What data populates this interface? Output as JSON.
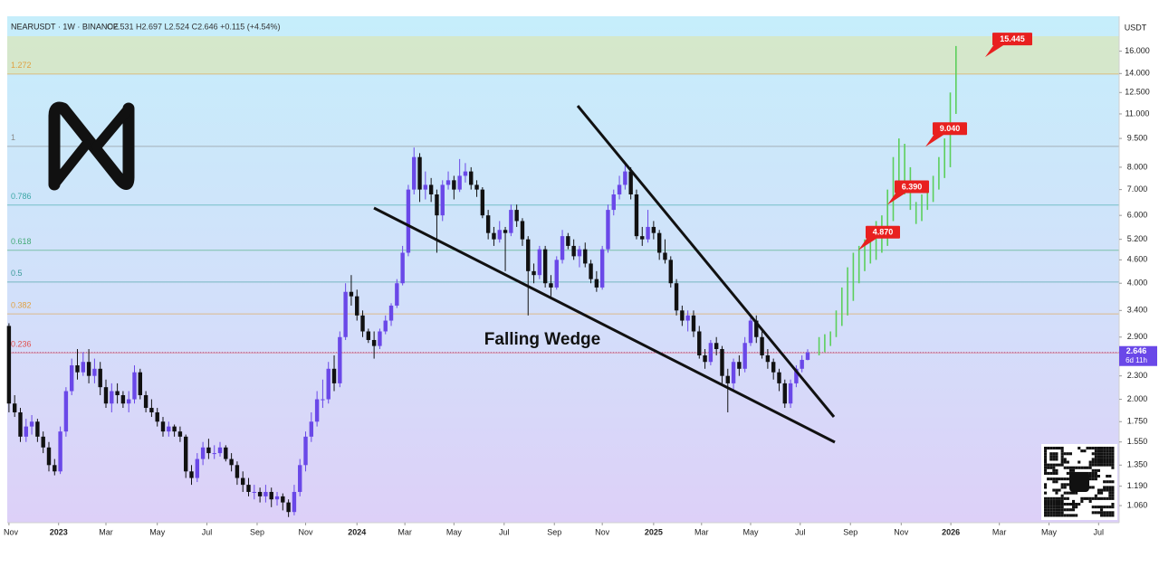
{
  "chart_data": {
    "type": "candlestick",
    "symbol": "NEARUSDT · 1W · BINANCE",
    "ohlc_text": "O2.531 H2.697 L2.524 C2.646 +0.115 (+4.54%)",
    "currency": "USDT",
    "annotation": "Falling Wedge",
    "log_scale": true,
    "up_color": "#6a48e8",
    "down_color": "#111111",
    "projection_color": "#5ccf5c",
    "target_color": "#e8201f",
    "ylim": [
      0.957,
      17.5
    ],
    "xlim": [
      -0.3,
      194.6
    ],
    "yticks": [
      {
        "value": 16,
        "label": "16.000"
      },
      {
        "value": 14,
        "label": "14.000"
      },
      {
        "value": 12.5,
        "label": "12.500"
      },
      {
        "value": 11,
        "label": "11.000"
      },
      {
        "value": 9.5,
        "label": "9.500"
      },
      {
        "value": 8,
        "label": "8.000"
      },
      {
        "value": 7,
        "label": "7.000"
      },
      {
        "value": 6,
        "label": "6.000"
      },
      {
        "value": 5.2,
        "label": "5.200"
      },
      {
        "value": 4.6,
        "label": "4.600"
      },
      {
        "value": 4,
        "label": "4.000"
      },
      {
        "value": 3.4,
        "label": "3.400"
      },
      {
        "value": 2.9,
        "label": "2.900"
      },
      {
        "value": 2.3,
        "label": "2.300"
      },
      {
        "value": 2,
        "label": "2.000"
      },
      {
        "value": 1.75,
        "label": "1.750"
      },
      {
        "value": 1.55,
        "label": "1.550"
      },
      {
        "value": 1.35,
        "label": "1.350"
      },
      {
        "value": 1.19,
        "label": "1.190"
      },
      {
        "value": 1.06,
        "label": "1.060"
      }
    ],
    "xticks": [
      {
        "value": 0,
        "label": "Nov"
      },
      {
        "value": 8.7,
        "label": "2023"
      },
      {
        "value": 17,
        "label": "Mar"
      },
      {
        "value": 26,
        "label": "May"
      },
      {
        "value": 34.7,
        "label": "Jul"
      },
      {
        "value": 43.5,
        "label": "Sep"
      },
      {
        "value": 52,
        "label": "Nov"
      },
      {
        "value": 61,
        "label": "2024"
      },
      {
        "value": 69.4,
        "label": "Mar"
      },
      {
        "value": 78,
        "label": "May"
      },
      {
        "value": 86.8,
        "label": "Jul"
      },
      {
        "value": 95.6,
        "label": "Sep"
      },
      {
        "value": 104,
        "label": "Nov"
      },
      {
        "value": 113,
        "label": "2025"
      },
      {
        "value": 121.4,
        "label": "Mar"
      },
      {
        "value": 130,
        "label": "May"
      },
      {
        "value": 138.7,
        "label": "Jul"
      },
      {
        "value": 147.5,
        "label": "Sep"
      },
      {
        "value": 156.4,
        "label": "Nov"
      },
      {
        "value": 165.1,
        "label": "2026"
      },
      {
        "value": 173.6,
        "label": "Mar"
      },
      {
        "value": 182.3,
        "label": "May"
      },
      {
        "value": 191,
        "label": "Jul"
      }
    ],
    "fib_levels": [
      {
        "label": "1.272",
        "value": 13.96,
        "color": "#e0a040"
      },
      {
        "label": "1",
        "value": 9.06,
        "color": "#8a8a8a"
      },
      {
        "label": "0.786",
        "value": 6.38,
        "color": "#3aa6a6"
      },
      {
        "label": "0.618",
        "value": 4.87,
        "color": "#44aa77"
      },
      {
        "label": "0.5",
        "value": 4.03,
        "color": "#3a9a9a"
      },
      {
        "label": "0.382",
        "value": 3.33,
        "color": "#e0a040"
      },
      {
        "label": "0.236",
        "value": 2.64,
        "color": "#e05050"
      }
    ],
    "last_price": {
      "value": 2.646,
      "label": "2.646"
    },
    "countdown": "6d 11h",
    "targets": [
      {
        "value": 4.87,
        "label": "4.870"
      },
      {
        "value": 6.39,
        "label": "6.390"
      },
      {
        "value": 9.04,
        "label": "9.040"
      },
      {
        "value": 15.445,
        "label": "15.445"
      }
    ],
    "ohlc": [
      [
        3.1,
        3.15,
        1.85,
        1.95
      ],
      [
        1.95,
        2.05,
        1.8,
        1.85
      ],
      [
        1.85,
        1.9,
        1.55,
        1.6
      ],
      [
        1.6,
        1.78,
        1.55,
        1.7
      ],
      [
        1.7,
        1.82,
        1.62,
        1.75
      ],
      [
        1.75,
        1.78,
        1.55,
        1.6
      ],
      [
        1.6,
        1.65,
        1.45,
        1.5
      ],
      [
        1.5,
        1.55,
        1.3,
        1.35
      ],
      [
        1.35,
        1.4,
        1.27,
        1.3
      ],
      [
        1.3,
        1.7,
        1.28,
        1.65
      ],
      [
        1.65,
        2.15,
        1.6,
        2.1
      ],
      [
        2.1,
        2.55,
        2.05,
        2.45
      ],
      [
        2.45,
        2.7,
        2.25,
        2.35
      ],
      [
        2.35,
        2.65,
        2.3,
        2.5
      ],
      [
        2.5,
        2.7,
        2.2,
        2.3
      ],
      [
        2.3,
        2.55,
        2.2,
        2.4
      ],
      [
        2.4,
        2.5,
        2.05,
        2.15
      ],
      [
        2.15,
        2.25,
        1.9,
        1.95
      ],
      [
        1.95,
        2.2,
        1.85,
        2.1
      ],
      [
        2.1,
        2.2,
        1.95,
        2.05
      ],
      [
        2.05,
        2.1,
        1.9,
        1.95
      ],
      [
        1.95,
        2.1,
        1.85,
        2.0
      ],
      [
        2.0,
        2.45,
        1.95,
        2.35
      ],
      [
        2.35,
        2.4,
        2.0,
        2.05
      ],
      [
        2.05,
        2.1,
        1.85,
        1.9
      ],
      [
        1.9,
        2.0,
        1.8,
        1.85
      ],
      [
        1.85,
        1.9,
        1.7,
        1.75
      ],
      [
        1.75,
        1.8,
        1.6,
        1.65
      ],
      [
        1.65,
        1.75,
        1.6,
        1.7
      ],
      [
        1.7,
        1.72,
        1.6,
        1.65
      ],
      [
        1.65,
        1.7,
        1.55,
        1.6
      ],
      [
        1.6,
        1.62,
        1.25,
        1.3
      ],
      [
        1.3,
        1.35,
        1.2,
        1.25
      ],
      [
        1.25,
        1.45,
        1.22,
        1.4
      ],
      [
        1.4,
        1.55,
        1.35,
        1.5
      ],
      [
        1.5,
        1.58,
        1.4,
        1.45
      ],
      [
        1.45,
        1.52,
        1.4,
        1.45
      ],
      [
        1.45,
        1.55,
        1.42,
        1.5
      ],
      [
        1.5,
        1.52,
        1.38,
        1.4
      ],
      [
        1.4,
        1.45,
        1.3,
        1.35
      ],
      [
        1.35,
        1.38,
        1.2,
        1.25
      ],
      [
        1.25,
        1.3,
        1.15,
        1.2
      ],
      [
        1.2,
        1.25,
        1.12,
        1.15
      ],
      [
        1.15,
        1.2,
        1.1,
        1.15
      ],
      [
        1.15,
        1.18,
        1.08,
        1.12
      ],
      [
        1.12,
        1.2,
        1.08,
        1.15
      ],
      [
        1.15,
        1.18,
        1.05,
        1.1
      ],
      [
        1.1,
        1.15,
        1.06,
        1.12
      ],
      [
        1.12,
        1.14,
        1.03,
        1.08
      ],
      [
        1.08,
        1.1,
        0.99,
        1.02
      ],
      [
        1.02,
        1.2,
        1.0,
        1.15
      ],
      [
        1.15,
        1.4,
        1.12,
        1.35
      ],
      [
        1.35,
        1.65,
        1.3,
        1.6
      ],
      [
        1.6,
        1.85,
        1.55,
        1.75
      ],
      [
        1.75,
        2.1,
        1.7,
        2.0
      ],
      [
        2.0,
        2.25,
        1.9,
        2.0
      ],
      [
        2.0,
        2.5,
        1.95,
        2.4
      ],
      [
        2.4,
        2.6,
        2.1,
        2.2
      ],
      [
        2.2,
        3.0,
        2.15,
        2.9
      ],
      [
        2.9,
        4.0,
        2.85,
        3.8
      ],
      [
        3.8,
        4.2,
        3.5,
        3.7
      ],
      [
        3.7,
        3.85,
        3.2,
        3.3
      ],
      [
        3.3,
        3.4,
        2.9,
        3.0
      ],
      [
        3.0,
        3.05,
        2.8,
        2.85
      ],
      [
        2.85,
        3.0,
        2.55,
        2.75
      ],
      [
        2.75,
        3.05,
        2.7,
        3.0
      ],
      [
        3.0,
        3.3,
        2.95,
        3.2
      ],
      [
        3.2,
        3.55,
        3.1,
        3.5
      ],
      [
        3.5,
        4.1,
        3.45,
        4.0
      ],
      [
        4.0,
        5.0,
        3.95,
        4.8
      ],
      [
        4.8,
        7.2,
        4.7,
        7.0
      ],
      [
        7.0,
        9.0,
        6.8,
        8.5
      ],
      [
        8.5,
        8.7,
        6.5,
        7.0
      ],
      [
        7.0,
        7.8,
        6.6,
        7.2
      ],
      [
        7.2,
        7.5,
        6.5,
        6.8
      ],
      [
        6.8,
        7.0,
        4.8,
        6.0
      ],
      [
        6.0,
        7.4,
        5.8,
        7.2
      ],
      [
        7.2,
        7.8,
        7.0,
        7.4
      ],
      [
        7.4,
        7.6,
        6.6,
        7.0
      ],
      [
        7.0,
        8.4,
        6.9,
        7.6
      ],
      [
        7.6,
        8.2,
        7.3,
        7.8
      ],
      [
        7.8,
        8.0,
        7.0,
        7.2
      ],
      [
        7.2,
        7.4,
        6.7,
        7.0
      ],
      [
        7.0,
        7.1,
        5.9,
        6.0
      ],
      [
        6.0,
        6.2,
        5.2,
        5.4
      ],
      [
        5.4,
        5.6,
        5.0,
        5.2
      ],
      [
        5.2,
        5.8,
        5.1,
        5.5
      ],
      [
        5.5,
        5.6,
        4.3,
        5.4
      ],
      [
        5.4,
        6.4,
        5.3,
        6.2
      ],
      [
        6.2,
        6.4,
        5.6,
        5.8
      ],
      [
        5.8,
        5.9,
        5.0,
        5.2
      ],
      [
        5.2,
        5.3,
        3.3,
        4.3
      ],
      [
        4.3,
        4.5,
        4.0,
        4.2
      ],
      [
        4.2,
        5.0,
        4.1,
        4.9
      ],
      [
        4.9,
        5.0,
        3.9,
        4.0
      ],
      [
        4.0,
        4.2,
        3.7,
        3.9
      ],
      [
        3.9,
        4.7,
        3.85,
        4.6
      ],
      [
        4.6,
        5.5,
        4.5,
        5.3
      ],
      [
        5.3,
        5.4,
        4.9,
        5.0
      ],
      [
        5.0,
        5.2,
        4.6,
        4.7
      ],
      [
        4.7,
        5.0,
        4.4,
        4.9
      ],
      [
        4.9,
        5.1,
        4.4,
        4.5
      ],
      [
        4.5,
        4.6,
        4.0,
        4.1
      ],
      [
        4.1,
        4.3,
        3.8,
        3.9
      ],
      [
        3.9,
        5.0,
        3.85,
        4.9
      ],
      [
        4.9,
        6.4,
        4.8,
        6.2
      ],
      [
        6.2,
        7.0,
        6.0,
        6.8
      ],
      [
        6.8,
        7.6,
        6.6,
        7.2
      ],
      [
        7.2,
        8.2,
        7.0,
        7.8
      ],
      [
        7.8,
        8.0,
        6.6,
        6.8
      ],
      [
        6.8,
        7.0,
        5.2,
        5.3
      ],
      [
        5.3,
        5.6,
        5.0,
        5.2
      ],
      [
        5.2,
        6.2,
        5.1,
        5.6
      ],
      [
        5.6,
        5.8,
        5.2,
        5.4
      ],
      [
        5.4,
        5.5,
        4.6,
        4.8
      ],
      [
        4.8,
        5.2,
        4.5,
        4.6
      ],
      [
        4.6,
        4.7,
        3.9,
        4.0
      ],
      [
        4.0,
        4.1,
        3.3,
        3.4
      ],
      [
        3.4,
        3.5,
        3.1,
        3.2
      ],
      [
        3.2,
        3.4,
        3.0,
        3.3
      ],
      [
        3.3,
        3.4,
        2.9,
        3.0
      ],
      [
        3.0,
        3.1,
        2.55,
        2.6
      ],
      [
        2.6,
        2.7,
        2.4,
        2.5
      ],
      [
        2.5,
        2.85,
        2.45,
        2.8
      ],
      [
        2.8,
        2.9,
        2.6,
        2.7
      ],
      [
        2.7,
        2.75,
        2.2,
        2.3
      ],
      [
        2.3,
        2.4,
        1.85,
        2.2
      ],
      [
        2.2,
        2.55,
        2.1,
        2.5
      ],
      [
        2.5,
        2.6,
        2.3,
        2.4
      ],
      [
        2.4,
        2.9,
        2.35,
        2.8
      ],
      [
        2.8,
        3.3,
        2.75,
        3.2
      ],
      [
        3.2,
        3.3,
        2.8,
        2.9
      ],
      [
        2.9,
        3.0,
        2.55,
        2.6
      ],
      [
        2.6,
        2.7,
        2.4,
        2.5
      ],
      [
        2.5,
        2.55,
        2.25,
        2.35
      ],
      [
        2.35,
        2.4,
        2.1,
        2.2
      ],
      [
        2.2,
        2.25,
        1.9,
        1.95
      ],
      [
        1.95,
        2.25,
        1.9,
        2.2
      ],
      [
        2.2,
        2.45,
        2.15,
        2.4
      ],
      [
        2.4,
        2.6,
        2.35,
        2.531
      ],
      [
        2.531,
        2.697,
        2.524,
        2.646
      ]
    ],
    "projection": [
      null,
      null,
      null,
      null,
      null,
      null,
      null,
      null,
      null,
      null,
      null,
      null,
      null,
      null,
      null,
      null,
      null,
      null,
      null,
      null,
      null,
      null,
      null,
      null,
      null,
      null,
      null,
      null,
      null,
      null,
      null,
      null,
      null,
      null,
      null,
      null,
      null,
      null,
      null,
      null,
      null,
      null,
      null,
      null,
      null,
      null,
      null,
      null,
      null,
      null,
      null,
      null,
      null,
      null,
      null,
      null,
      null,
      null,
      null,
      null,
      null,
      null,
      null,
      null,
      null,
      null,
      null,
      null,
      null,
      null,
      null,
      null,
      null,
      null,
      null,
      null,
      null,
      null,
      null,
      null,
      null,
      null,
      null,
      null,
      null,
      null,
      null,
      null,
      null,
      null,
      null,
      null,
      null,
      null,
      null,
      null,
      null,
      null,
      null,
      null,
      null,
      null,
      null,
      null,
      null,
      null,
      null,
      null,
      null,
      null,
      null,
      null,
      null,
      null,
      null,
      null,
      null,
      null,
      null,
      null,
      null,
      null,
      null,
      null,
      null,
      null,
      null,
      null,
      null,
      null,
      null,
      null,
      null,
      null,
      null,
      null,
      null,
      null,
      null,
      null,
      null,
      null,
      [
        2.6,
        2.9
      ],
      [
        2.65,
        2.95
      ],
      [
        2.75,
        3.0
      ],
      [
        2.9,
        3.4
      ],
      [
        3.1,
        3.9
      ],
      [
        3.3,
        4.4
      ],
      [
        3.6,
        4.8
      ],
      [
        4.0,
        5.0
      ],
      [
        4.3,
        5.2
      ],
      [
        4.5,
        5.5
      ],
      [
        4.6,
        5.8
      ],
      [
        4.8,
        6.0
      ],
      [
        5.0,
        7.0
      ],
      [
        5.8,
        8.5
      ],
      [
        7.0,
        9.5
      ],
      [
        6.8,
        9.2
      ],
      [
        6.2,
        8.0
      ],
      [
        5.7,
        6.5
      ],
      [
        5.8,
        6.8
      ],
      [
        6.2,
        7.0
      ],
      [
        6.5,
        7.6
      ],
      [
        7.0,
        8.5
      ],
      [
        7.5,
        9.5
      ],
      [
        8.0,
        12.5
      ],
      [
        11.0,
        16.5
      ]
    ]
  }
}
